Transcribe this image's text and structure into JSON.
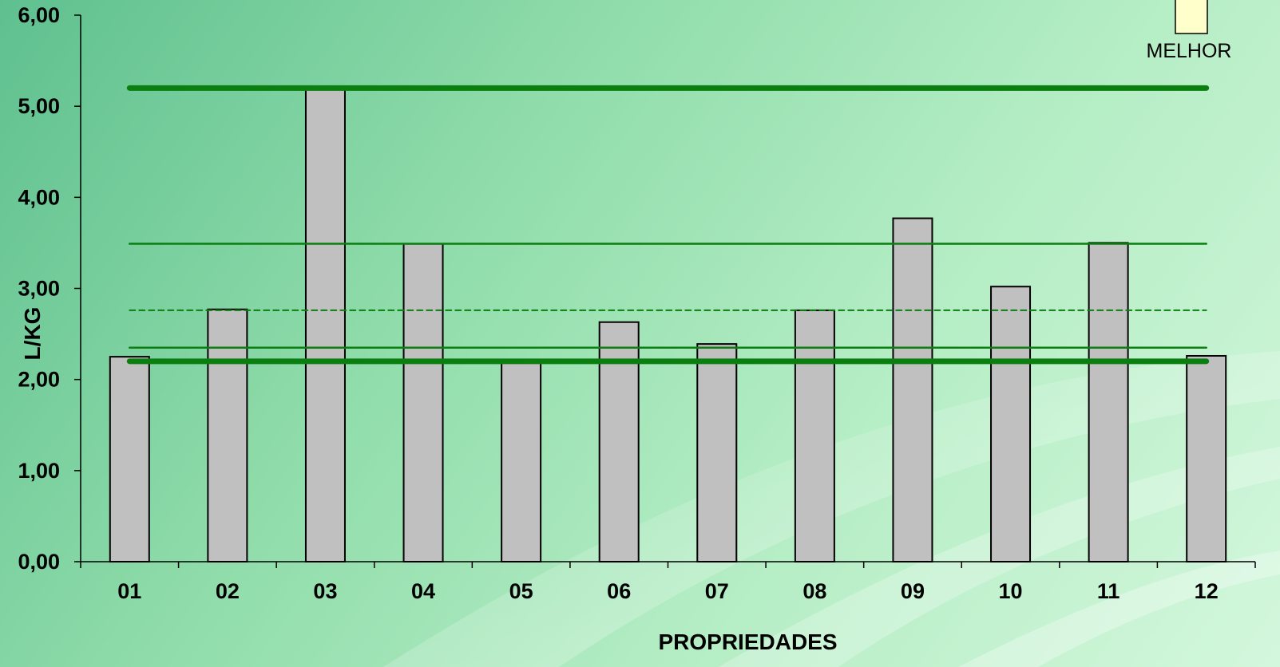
{
  "chart_data": {
    "type": "bar",
    "categories": [
      "01",
      "02",
      "03",
      "04",
      "05",
      "06",
      "07",
      "08",
      "09",
      "10",
      "11",
      "12"
    ],
    "values": [
      2.25,
      2.77,
      5.2,
      3.49,
      2.2,
      2.63,
      2.39,
      2.76,
      3.77,
      3.02,
      3.5,
      2.26
    ],
    "xlabel": "PROPRIEDADES",
    "ylabel": "L/KG",
    "ylim": [
      0,
      6
    ],
    "yticks": [
      "0,00",
      "1,00",
      "2,00",
      "3,00",
      "4,00",
      "5,00",
      "6,00"
    ],
    "reference_lines": [
      {
        "value": 5.2,
        "style": "thick"
      },
      {
        "value": 3.49,
        "style": "thin"
      },
      {
        "value": 2.76,
        "style": "dashed"
      },
      {
        "value": 2.35,
        "style": "thin"
      },
      {
        "value": 2.2,
        "style": "thick"
      }
    ],
    "legend": {
      "label": "MELHOR",
      "position": "top-right"
    },
    "bar_color": "#c0c0c0",
    "line_color": "#0a7f10",
    "legend_swatch_color": "#ffffcc",
    "grid": false
  }
}
